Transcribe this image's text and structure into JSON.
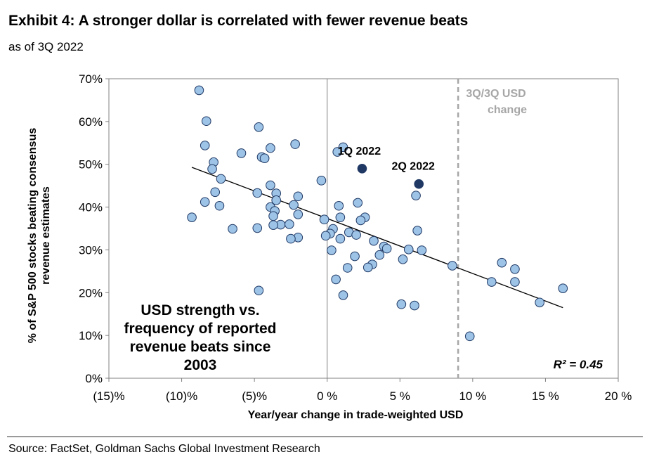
{
  "header": {
    "title": "Exhibit 4: A stronger dollar is correlated with fewer revenue beats",
    "subtitle": "as of 3Q 2022"
  },
  "footer": {
    "source": "Source: FactSet, Goldman Sachs Global Investment Research"
  },
  "colors": {
    "point_fill": "#9dc3e6",
    "point_stroke": "#1f3864",
    "highlight_fill": "#1f3864",
    "trendline": "#000000",
    "reference_line": "#a6a6a6",
    "axis": "#808080"
  },
  "chart_data": {
    "type": "scatter",
    "title": "",
    "xlabel": "Year/year change in trade-weighted USD",
    "ylabel": "% of S&P 500 stocks beating consensus revenue estimates",
    "xlim": [
      -15,
      20
    ],
    "ylim": [
      0,
      70
    ],
    "x_ticks": [
      "(15)%",
      "(10)%",
      "(5)%",
      "0 %",
      "5 %",
      "10 %",
      "15 %",
      "20 %"
    ],
    "x_tick_values": [
      -15,
      -10,
      -5,
      0,
      5,
      10,
      15,
      20
    ],
    "y_ticks": [
      "0%",
      "10%",
      "20%",
      "30%",
      "40%",
      "50%",
      "60%",
      "70%"
    ],
    "y_tick_values": [
      0,
      10,
      20,
      30,
      40,
      50,
      60,
      70
    ],
    "grid": false,
    "points": [
      {
        "x": -8.8,
        "y": 67.3
      },
      {
        "x": -8.3,
        "y": 60.1
      },
      {
        "x": -4.7,
        "y": 58.7
      },
      {
        "x": -8.4,
        "y": 54.4
      },
      {
        "x": -2.2,
        "y": 54.7
      },
      {
        "x": -5.9,
        "y": 52.6
      },
      {
        "x": -4.5,
        "y": 51.7
      },
      {
        "x": -3.9,
        "y": 53.8
      },
      {
        "x": -4.3,
        "y": 51.4
      },
      {
        "x": -7.8,
        "y": 50.5
      },
      {
        "x": -7.9,
        "y": 48.9
      },
      {
        "x": -7.3,
        "y": 46.6
      },
      {
        "x": -0.4,
        "y": 46.2
      },
      {
        "x": -3.9,
        "y": 45.1
      },
      {
        "x": -7.7,
        "y": 43.5
      },
      {
        "x": -4.8,
        "y": 43.3
      },
      {
        "x": -3.5,
        "y": 43.2
      },
      {
        "x": -2.0,
        "y": 42.5
      },
      {
        "x": -3.5,
        "y": 41.6
      },
      {
        "x": -8.4,
        "y": 41.2
      },
      {
        "x": -7.4,
        "y": 40.3
      },
      {
        "x": -3.9,
        "y": 40.0
      },
      {
        "x": -2.3,
        "y": 40.5
      },
      {
        "x": -3.6,
        "y": 39.1
      },
      {
        "x": -2.0,
        "y": 38.3
      },
      {
        "x": -3.7,
        "y": 37.9
      },
      {
        "x": -9.3,
        "y": 37.6
      },
      {
        "x": -3.2,
        "y": 35.9
      },
      {
        "x": -3.7,
        "y": 35.8
      },
      {
        "x": -2.6,
        "y": 36.0
      },
      {
        "x": -6.5,
        "y": 34.9
      },
      {
        "x": -4.8,
        "y": 35.1
      },
      {
        "x": -2.0,
        "y": 32.9
      },
      {
        "x": -2.5,
        "y": 32.6
      },
      {
        "x": -4.7,
        "y": 20.5
      },
      {
        "x": 1.1,
        "y": 54.0
      },
      {
        "x": 0.7,
        "y": 52.9
      },
      {
        "x": 0.8,
        "y": 40.3
      },
      {
        "x": 2.1,
        "y": 41.0
      },
      {
        "x": 6.1,
        "y": 42.7
      },
      {
        "x": 0.9,
        "y": 37.6
      },
      {
        "x": 2.6,
        "y": 37.6
      },
      {
        "x": -0.2,
        "y": 37.1
      },
      {
        "x": 2.3,
        "y": 36.9
      },
      {
        "x": 0.4,
        "y": 34.9
      },
      {
        "x": 1.5,
        "y": 34.1
      },
      {
        "x": 2.0,
        "y": 33.5
      },
      {
        "x": 0.2,
        "y": 33.8
      },
      {
        "x": -0.1,
        "y": 33.3
      },
      {
        "x": 0.9,
        "y": 32.6
      },
      {
        "x": 6.2,
        "y": 34.5
      },
      {
        "x": 3.2,
        "y": 32.1
      },
      {
        "x": 3.9,
        "y": 30.8
      },
      {
        "x": 4.1,
        "y": 30.3
      },
      {
        "x": 5.6,
        "y": 30.1
      },
      {
        "x": 6.5,
        "y": 29.9
      },
      {
        "x": 0.3,
        "y": 29.9
      },
      {
        "x": 3.6,
        "y": 28.8
      },
      {
        "x": 1.9,
        "y": 28.5
      },
      {
        "x": 5.2,
        "y": 27.8
      },
      {
        "x": 3.1,
        "y": 26.6
      },
      {
        "x": 2.8,
        "y": 25.9
      },
      {
        "x": 1.4,
        "y": 25.8
      },
      {
        "x": 8.6,
        "y": 26.3
      },
      {
        "x": 0.6,
        "y": 23.1
      },
      {
        "x": 1.1,
        "y": 19.4
      },
      {
        "x": 5.1,
        "y": 17.3
      },
      {
        "x": 6.0,
        "y": 17.0
      },
      {
        "x": 9.8,
        "y": 9.8
      },
      {
        "x": 11.3,
        "y": 22.5
      },
      {
        "x": 12.0,
        "y": 27.0
      },
      {
        "x": 12.9,
        "y": 25.5
      },
      {
        "x": 12.9,
        "y": 22.5
      },
      {
        "x": 14.6,
        "y": 17.7
      },
      {
        "x": 16.2,
        "y": 21.0
      }
    ],
    "highlighted_points": [
      {
        "label": "1Q 2022",
        "x": 2.4,
        "y": 49.0
      },
      {
        "label": "2Q 2022",
        "x": 6.3,
        "y": 45.4
      }
    ],
    "trendline": {
      "x": [
        -9.3,
        16.2
      ],
      "y": [
        49.3,
        16.5
      ]
    },
    "reference_line": {
      "x": 9.0,
      "label_line1": "3Q/3Q USD",
      "label_line2": "change"
    },
    "annotation_lines": [
      "USD strength vs.",
      "frequency of reported",
      "revenue beats since",
      "2003"
    ],
    "r_squared_label": "R² = 0.45"
  }
}
